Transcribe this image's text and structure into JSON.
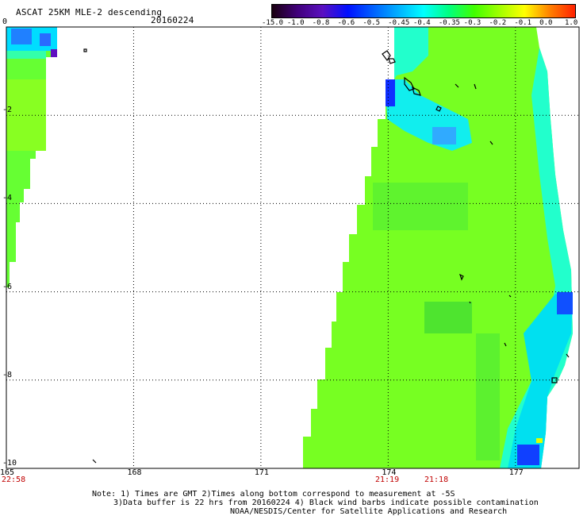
{
  "header": {
    "title": "ASCAT 25KM MLE-2 descending",
    "date": "20160224"
  },
  "colorbar": {
    "ticks": [
      "-15.0",
      "-1.0",
      "-0.8",
      "-0.6",
      "-0.5",
      "-0.45",
      "-0.4",
      "-0.35",
      "-0.3",
      "-0.2",
      "-0.1",
      "0.0",
      "1.0"
    ],
    "stops": [
      "#1a0010",
      "#40007a",
      "#5a10c0",
      "#0010ff",
      "#0060ff",
      "#00b0ff",
      "#00ffff",
      "#00ff80",
      "#40ff00",
      "#a0ff00",
      "#ffff00",
      "#ff8000",
      "#ff2000"
    ]
  },
  "axes": {
    "y_ticks": [
      "0",
      "-2",
      "-4",
      "-6",
      "-8",
      "-10"
    ],
    "x_ticks": [
      "165",
      "168",
      "171",
      "174",
      "177"
    ],
    "lat_range": [
      0,
      -10
    ],
    "lon_range": [
      165,
      178.5
    ]
  },
  "pass_times": {
    "left": "22:58",
    "right_a": "21:19",
    "right_b": "21:18"
  },
  "notes": {
    "line1": "Note: 1) Times are GMT 2)Times along bottom correspond to measurement at -5S",
    "line2": "3)Data buffer is 22 hrs from 20160224 4) Black wind barbs indicate possible contamination",
    "line3": "NOAA/NESDIS/Center for Satellite Applications and Research"
  }
}
